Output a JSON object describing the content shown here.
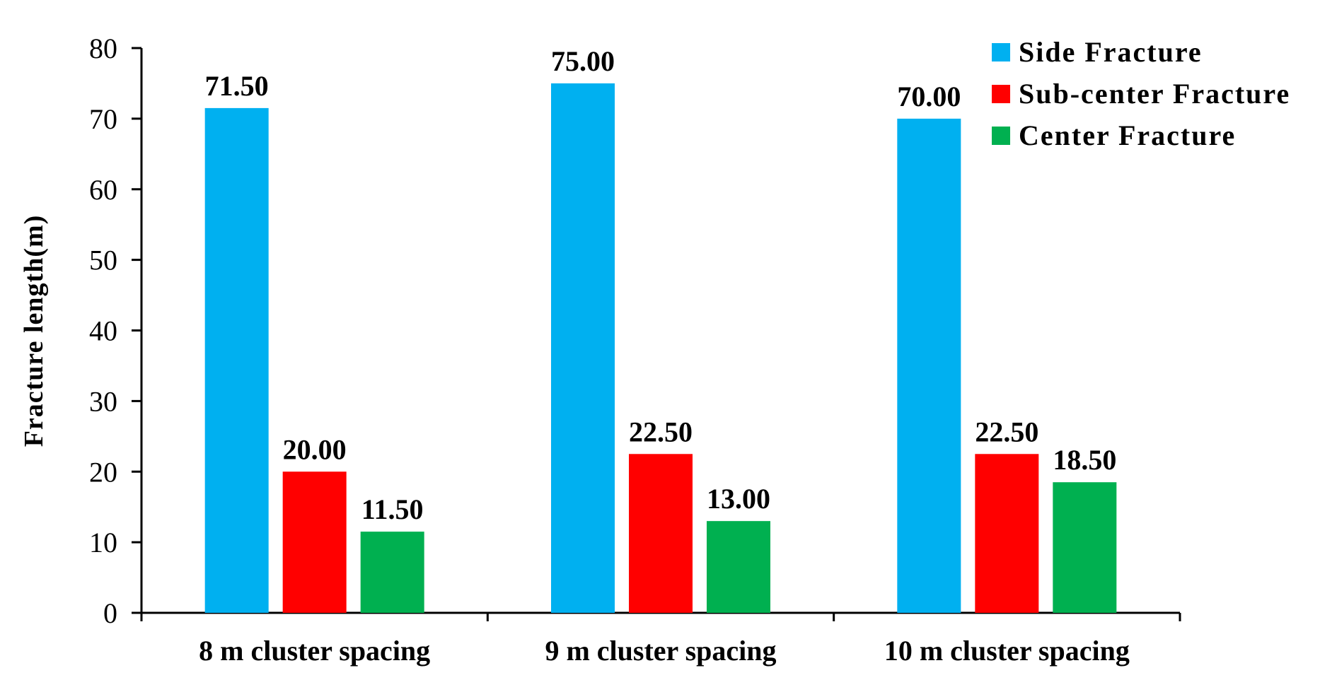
{
  "chart_data": {
    "type": "bar",
    "title": "",
    "xlabel": "",
    "ylabel": "Fracture length(m)",
    "categories": [
      "8 m cluster spacing",
      "9 m cluster spacing",
      "10 m cluster spacing"
    ],
    "series": [
      {
        "name": "Side Fracture",
        "color": "#00B0F0",
        "values": [
          71.5,
          75.0,
          70.0
        ],
        "labels": [
          "71.50",
          "75.00",
          "70.00"
        ]
      },
      {
        "name": "Sub-center Fracture",
        "color": "#FF0000",
        "values": [
          20.0,
          22.5,
          22.5
        ],
        "labels": [
          "20.00",
          "22.50",
          "22.50"
        ]
      },
      {
        "name": "Center Fracture",
        "color": "#00B050",
        "values": [
          11.5,
          13.0,
          18.5
        ],
        "labels": [
          "11.50",
          "13.00",
          "18.50"
        ]
      }
    ],
    "ylim": [
      0,
      80
    ],
    "yticks": [
      0,
      10,
      20,
      30,
      40,
      50,
      60,
      70,
      80
    ],
    "grid": false,
    "legend": "top-right"
  }
}
